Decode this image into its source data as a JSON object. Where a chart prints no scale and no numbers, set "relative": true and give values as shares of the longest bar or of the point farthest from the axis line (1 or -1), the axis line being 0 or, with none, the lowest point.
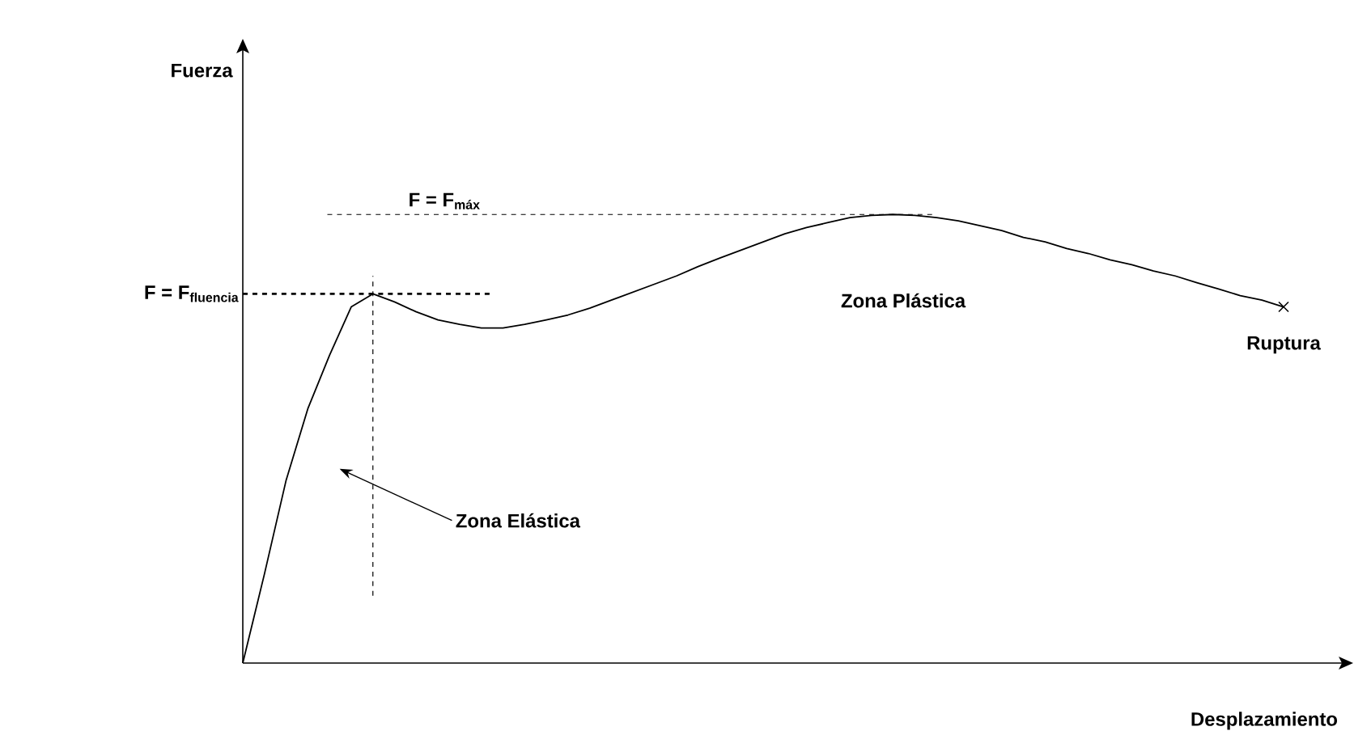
{
  "chart_data": {
    "type": "line",
    "relative": true,
    "xlabel": "Desplazamiento",
    "marker": "none",
    "line_style": "solid",
    "categories": [
      null,
      null,
      null,
      null,
      null,
      null,
      null,
      null,
      null,
      null,
      null,
      null,
      null,
      null,
      null,
      null,
      null,
      null,
      null,
      null,
      null,
      null,
      null,
      null,
      null,
      null,
      null,
      null,
      null,
      null,
      null,
      null,
      null,
      null,
      null,
      null,
      null,
      null,
      null,
      null,
      null,
      null,
      null,
      null,
      null,
      null,
      null,
      null,
      null
    ],
    "series": [
      {
        "color": "#000000",
        "values": [
          0,
          0.199,
          0.408,
          0.567,
          0.686,
          0.794,
          0.823,
          0.805,
          0.783,
          0.765,
          0.755,
          0.747,
          0.747,
          0.755,
          0.765,
          0.776,
          0.791,
          0.809,
          0.827,
          0.845,
          0.863,
          0.884,
          0.903,
          0.921,
          0.939,
          0.957,
          0.971,
          0.982,
          0.993,
          0.998,
          1.0,
          0.998,
          0.993,
          0.986,
          0.975,
          0.964,
          0.949,
          0.939,
          0.924,
          0.913,
          0.899,
          0.888,
          0.874,
          0.863,
          0.848,
          0.834,
          0.819,
          0.809,
          0.794
        ]
      }
    ],
    "ref_lines": [
      {
        "axis": "y",
        "value": 0.823,
        "label": "F = F$_{fluencia}$",
        "line_style": "dashed"
      },
      {
        "axis": "y",
        "value": 1.0,
        "label": "F = F$_{máx}$",
        "line_style": "dashed"
      }
    ],
    "annotations": [
      "Zona Elástica",
      "Zona Plástica",
      "Ruptura",
      "Fuerza"
    ]
  }
}
